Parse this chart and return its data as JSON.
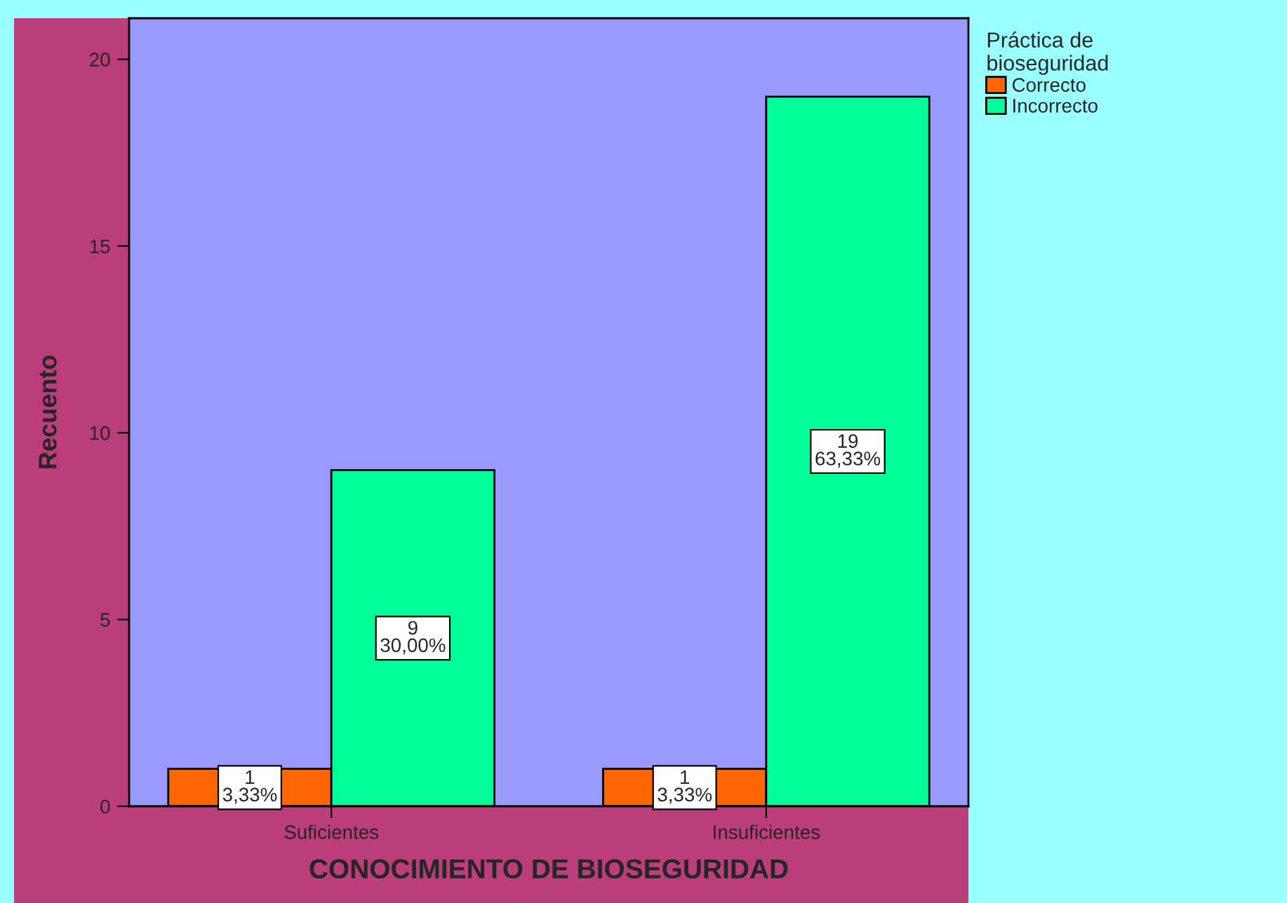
{
  "chart_data": {
    "type": "bar",
    "xlabel": "CONOCIMIENTO DE BIOSEGURIDAD",
    "ylabel": "Recuento",
    "legend_title": "Práctica de\nbioseguridad",
    "categories": [
      "Suficientes",
      "Insuficientes"
    ],
    "series": [
      {
        "name": "Correcto",
        "color": "#ff6600",
        "values": [
          1,
          1
        ],
        "value_labels": [
          "1\n3,33%",
          "1\n3,33%"
        ]
      },
      {
        "name": "Incorrecto",
        "color": "#00ff99",
        "values": [
          9,
          19
        ],
        "value_labels": [
          "9\n30,00%",
          "19\n63,33%"
        ]
      }
    ],
    "ylim": [
      0,
      21.1
    ],
    "yticks": [
      0,
      5,
      10,
      15,
      20
    ],
    "grid": false,
    "legend": "top right"
  }
}
